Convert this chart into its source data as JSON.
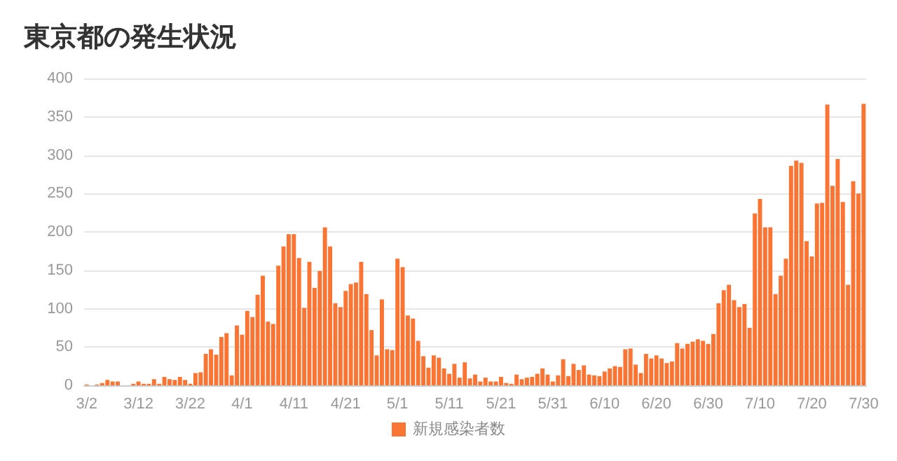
{
  "chart_data": {
    "type": "bar",
    "title": "東京都の発生状況",
    "categories": [
      "3/2",
      null,
      null,
      null,
      null,
      null,
      null,
      null,
      null,
      null,
      "3/12",
      null,
      null,
      null,
      null,
      null,
      null,
      null,
      null,
      null,
      "3/22",
      null,
      null,
      null,
      null,
      null,
      null,
      null,
      null,
      null,
      "4/1",
      null,
      null,
      null,
      null,
      null,
      null,
      null,
      null,
      null,
      "4/11",
      null,
      null,
      null,
      null,
      null,
      null,
      null,
      null,
      null,
      "4/21",
      null,
      null,
      null,
      null,
      null,
      null,
      null,
      null,
      null,
      "5/1",
      null,
      null,
      null,
      null,
      null,
      null,
      null,
      null,
      null,
      "5/11",
      null,
      null,
      null,
      null,
      null,
      null,
      null,
      null,
      null,
      "5/21",
      null,
      null,
      null,
      null,
      null,
      null,
      null,
      null,
      null,
      "5/31",
      null,
      null,
      null,
      null,
      null,
      null,
      null,
      null,
      null,
      "6/10",
      null,
      null,
      null,
      null,
      null,
      null,
      null,
      null,
      null,
      "6/20",
      null,
      null,
      null,
      null,
      null,
      null,
      null,
      null,
      null,
      "6/30",
      null,
      null,
      null,
      null,
      null,
      null,
      null,
      null,
      null,
      "7/10",
      null,
      null,
      null,
      null,
      null,
      null,
      null,
      null,
      null,
      "7/20",
      null,
      null,
      null,
      null,
      null,
      null,
      null,
      null,
      null,
      "7/30"
    ],
    "series": [
      {
        "name": "新規感染者数",
        "color": "#fa7434",
        "values": [
          1,
          0,
          1,
          3,
          7,
          5,
          5,
          0,
          0,
          2,
          5,
          2,
          2,
          8,
          2,
          11,
          8,
          7,
          11,
          7,
          2,
          16,
          17,
          41,
          47,
          40,
          63,
          68,
          13,
          78,
          66,
          97,
          89,
          118,
          143,
          83,
          80,
          156,
          181,
          197,
          197,
          166,
          101,
          161,
          127,
          149,
          206,
          181,
          107,
          102,
          123,
          132,
          134,
          161,
          119,
          72,
          39,
          112,
          47,
          46,
          165,
          154,
          91,
          87,
          58,
          38,
          23,
          39,
          36,
          22,
          15,
          28,
          10,
          30,
          9,
          14,
          5,
          10,
          5,
          5,
          11,
          3,
          2,
          14,
          8,
          10,
          11,
          15,
          22,
          14,
          5,
          13,
          34,
          12,
          28,
          20,
          26,
          14,
          13,
          12,
          18,
          22,
          25,
          24,
          47,
          48,
          27,
          16,
          41,
          35,
          39,
          35,
          29,
          31,
          55,
          48,
          54,
          57,
          60,
          58,
          54,
          67,
          107,
          124,
          131,
          111,
          102,
          106,
          75,
          224,
          243,
          206,
          206,
          119,
          143,
          165,
          286,
          293,
          290,
          188,
          168,
          237,
          238,
          366,
          260,
          295,
          239,
          131,
          266,
          250,
          367
        ]
      }
    ],
    "ylim": [
      0,
      400
    ],
    "yticks": [
      0,
      50,
      100,
      150,
      200,
      250,
      300,
      350,
      400
    ],
    "grid": "y",
    "legend": "bottom"
  }
}
